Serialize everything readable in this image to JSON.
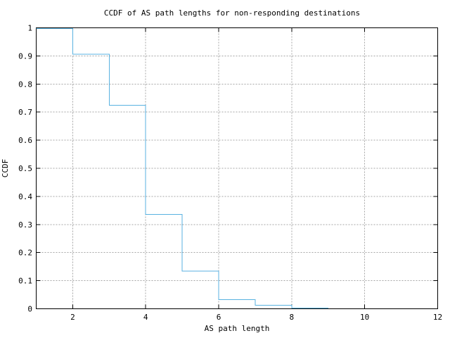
{
  "chart_data": {
    "type": "line",
    "style": "step-post",
    "title": "CCDF of AS path lengths for non-responding destinations",
    "xlabel": "AS path length",
    "ylabel": "CCDF",
    "xlim": [
      1,
      12
    ],
    "ylim": [
      0,
      1
    ],
    "x_ticks": {
      "values": [
        2,
        4,
        6,
        8,
        10,
        12
      ],
      "labels": [
        "2",
        "4",
        "6",
        "8",
        "10",
        "12"
      ]
    },
    "y_ticks": {
      "values": [
        0,
        0.1,
        0.2,
        0.3,
        0.4,
        0.5,
        0.6,
        0.7,
        0.8,
        0.9,
        1
      ],
      "labels": [
        "0",
        "0.1",
        "0.2",
        "0.3",
        "0.4",
        "0.5",
        "0.6",
        "0.7",
        "0.8",
        "0.9",
        "1"
      ]
    },
    "grid": {
      "show": true,
      "line_style": "dashed",
      "color": "#a6a6a6",
      "x_values": [
        2,
        4,
        6,
        8,
        10
      ],
      "y_values": [
        0.1,
        0.2,
        0.3,
        0.4,
        0.5,
        0.6,
        0.7,
        0.8,
        0.9
      ]
    },
    "legend": "none",
    "series": [
      {
        "name": "CCDF of AS path length",
        "color": "#59b2e0",
        "steps": [
          [
            1,
            0.997
          ],
          [
            2,
            0.906
          ],
          [
            3,
            0.724
          ],
          [
            4,
            0.336
          ],
          [
            5,
            0.134
          ],
          [
            6,
            0.033
          ],
          [
            7,
            0.012
          ],
          [
            8,
            0.003
          ]
        ],
        "x_end": 9
      }
    ]
  }
}
